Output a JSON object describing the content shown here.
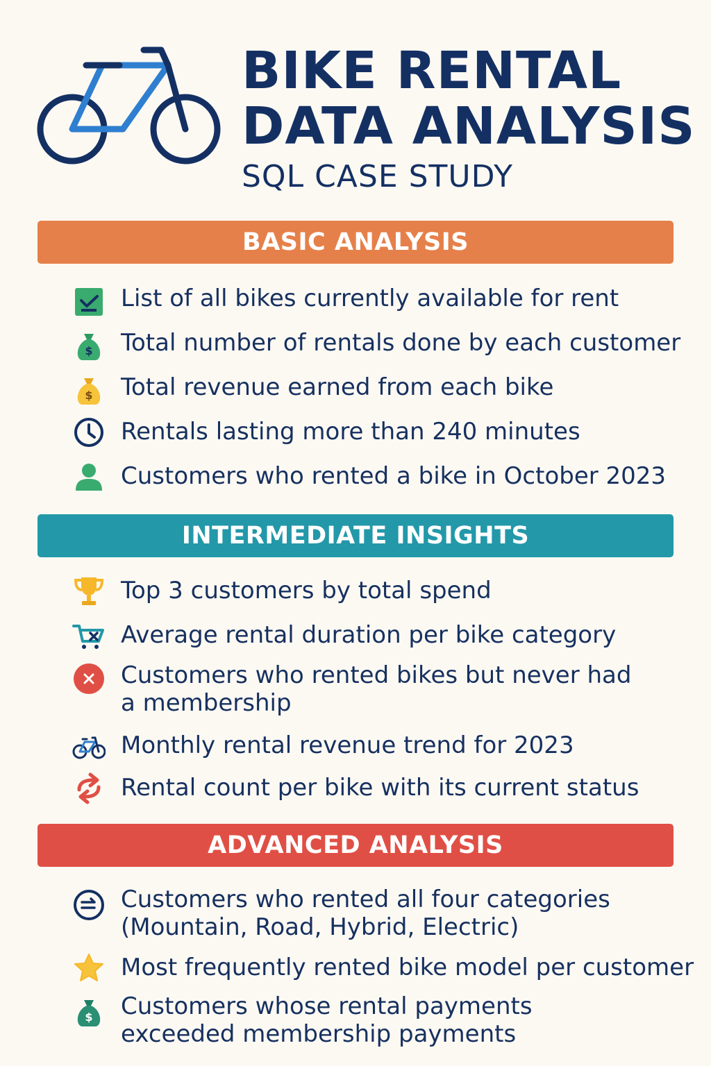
{
  "header": {
    "title_line1": "BIKE RENTAL",
    "title_line2": "DATA ANALYSIS",
    "subtitle": "SQL CASE STUDY"
  },
  "sections": [
    {
      "label": "BASIC ANALYSIS",
      "color": "#e6804a",
      "items": [
        {
          "icon": "checkbox-icon",
          "text": "List of all bikes currently available for rent"
        },
        {
          "icon": "money-bag-icon",
          "text": "Total number of rentals done by each customer"
        },
        {
          "icon": "money-bag-icon",
          "text": "Total revenue earned from each bike"
        },
        {
          "icon": "clock-icon",
          "text": "Rentals lasting more than 240 minutes"
        },
        {
          "icon": "person-icon",
          "text": "Customers who rented a bike in October 2023"
        }
      ]
    },
    {
      "label": "INTERMEDIATE INSIGHTS",
      "color": "#2398a9",
      "items": [
        {
          "icon": "trophy-icon",
          "text": "Top 3 customers by total spend"
        },
        {
          "icon": "cart-icon",
          "text": "Average rental duration per bike category"
        },
        {
          "icon": "x-circle-icon",
          "text": [
            "Customers who rented bikes but never had",
            "a membership"
          ]
        },
        {
          "icon": "bicycle-icon",
          "text": "Monthly rental revenue trend for 2023"
        },
        {
          "icon": "repeat-arrows-icon",
          "text": "Rental count per bike with its current status"
        }
      ]
    },
    {
      "label": "ADVANCED ANALYSIS",
      "color": "#e04f45",
      "items": [
        {
          "icon": "exchange-circle-icon",
          "text": [
            "Customers who rented all four categories",
            "(Mountain, Road, Hybrid, Electric)"
          ]
        },
        {
          "icon": "star-icon",
          "text": "Most frequently rented bike model per customer"
        },
        {
          "icon": "money-bag-icon",
          "text": [
            "Customers whose rental payments",
            "exceeded membership payments"
          ]
        }
      ]
    }
  ]
}
